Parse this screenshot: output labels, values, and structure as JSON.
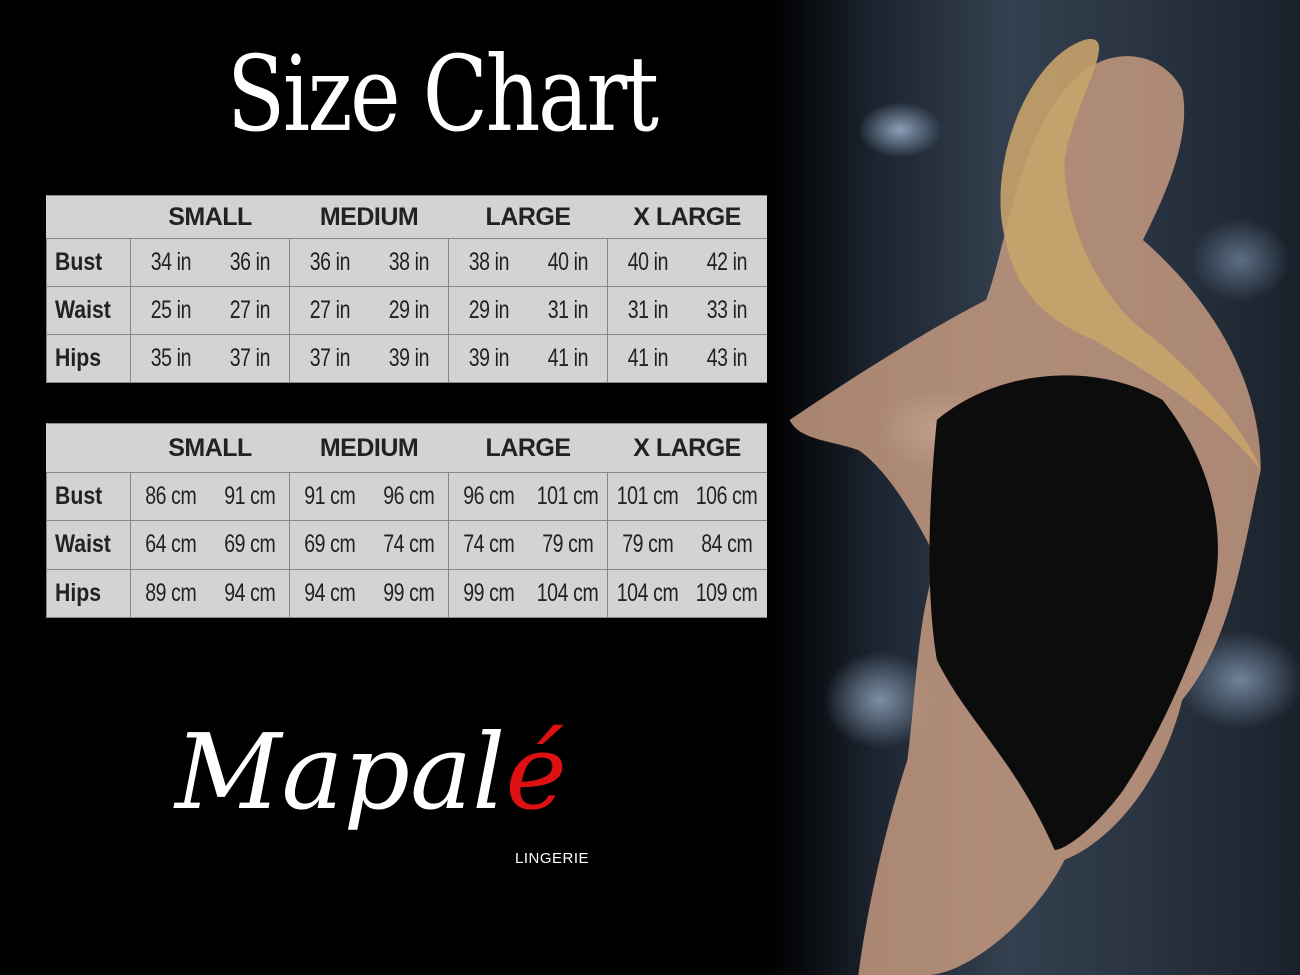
{
  "title": "Size Chart",
  "tables": [
    {
      "unit": "in",
      "sizes": [
        "SMALL",
        "MEDIUM",
        "LARGE",
        "X LARGE"
      ],
      "rows": [
        {
          "label": "Bust",
          "values": [
            "34 in",
            "36 in",
            "36 in",
            "38 in",
            "38 in",
            "40 in",
            "40 in",
            "42 in"
          ]
        },
        {
          "label": "Waist",
          "values": [
            "25 in",
            "27 in",
            "27 in",
            "29 in",
            "29 in",
            "31 in",
            "31 in",
            "33 in"
          ]
        },
        {
          "label": "Hips",
          "values": [
            "35 in",
            "37 in",
            "37 in",
            "39 in",
            "39 in",
            "41 in",
            "41 in",
            "43 in"
          ]
        }
      ]
    },
    {
      "unit": "cm",
      "sizes": [
        "SMALL",
        "MEDIUM",
        "LARGE",
        "X LARGE"
      ],
      "rows": [
        {
          "label": "Bust",
          "values": [
            "86 cm",
            "91 cm",
            "91 cm",
            "96 cm",
            "96 cm",
            "101 cm",
            "101 cm",
            "106 cm"
          ]
        },
        {
          "label": "Waist",
          "values": [
            "64 cm",
            "69 cm",
            "69 cm",
            "74 cm",
            "74 cm",
            "79  cm",
            "79 cm",
            "84 cm"
          ]
        },
        {
          "label": "Hips",
          "values": [
            "89 cm",
            "94 cm",
            "94 cm",
            "99 cm",
            "99 cm",
            "104 cm",
            "104 cm",
            "109 cm"
          ]
        }
      ]
    }
  ],
  "logo": {
    "name_main": "Mapal",
    "name_accent": "é",
    "subtitle": "LINGERIE",
    "accent_color": "#dd1111"
  },
  "colors": {
    "background": "#000000",
    "table_bg": "#d3d3d3",
    "text": "#222222"
  }
}
